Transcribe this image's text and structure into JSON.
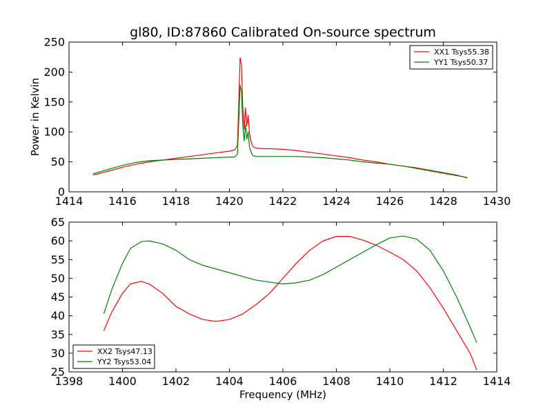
{
  "figure": {
    "title": "gl80, ID:87860 Calibrated On-source spectrum",
    "xlabel": "Frequency (MHz)"
  },
  "chart_data": [
    {
      "type": "line",
      "title": "gl80, ID:87860 Calibrated On-source spectrum",
      "xlabel": "",
      "ylabel": "Power in Kelvin",
      "xlim": [
        1414,
        1430
      ],
      "ylim": [
        0,
        250
      ],
      "xticks": [
        1414,
        1416,
        1418,
        1420,
        1422,
        1424,
        1426,
        1428,
        1430
      ],
      "yticks": [
        0,
        50,
        100,
        150,
        200,
        250
      ],
      "legend_position": "top-right",
      "grid": false,
      "series": [
        {
          "name": "XX1 Tsys55.38",
          "color": "#ff0000",
          "x": [
            1414.9,
            1415.5,
            1416.0,
            1416.5,
            1417.0,
            1417.5,
            1418.0,
            1418.5,
            1419.0,
            1419.5,
            1420.0,
            1420.2,
            1420.3,
            1420.35,
            1420.4,
            1420.45,
            1420.5,
            1420.55,
            1420.6,
            1420.65,
            1420.7,
            1420.75,
            1420.8,
            1420.85,
            1420.9,
            1421.0,
            1421.2,
            1421.5,
            1422.0,
            1422.5,
            1423.0,
            1423.5,
            1424.0,
            1424.5,
            1425.0,
            1425.5,
            1426.0,
            1426.5,
            1427.0,
            1427.5,
            1428.0,
            1428.5,
            1428.9
          ],
          "y": [
            28,
            35,
            41,
            46,
            50,
            53,
            56,
            59,
            62,
            65,
            68,
            70,
            78,
            150,
            224,
            212,
            140,
            105,
            140,
            110,
            128,
            98,
            85,
            78,
            75,
            73,
            72,
            72,
            71,
            69,
            66,
            63,
            60,
            57,
            53,
            50,
            46,
            43,
            39,
            35,
            31,
            27,
            24
          ]
        },
        {
          "name": "YY1 Tsys50.37",
          "color": "#008000",
          "x": [
            1414.9,
            1415.5,
            1416.0,
            1416.5,
            1417.0,
            1417.5,
            1418.0,
            1418.5,
            1419.0,
            1419.5,
            1420.0,
            1420.2,
            1420.3,
            1420.35,
            1420.4,
            1420.45,
            1420.5,
            1420.55,
            1420.6,
            1420.65,
            1420.7,
            1420.75,
            1420.8,
            1420.85,
            1420.9,
            1421.0,
            1421.2,
            1421.5,
            1422.0,
            1422.5,
            1423.0,
            1423.5,
            1424.0,
            1424.5,
            1425.0,
            1425.5,
            1426.0,
            1426.5,
            1427.0,
            1427.5,
            1428.0,
            1428.5,
            1428.9
          ],
          "y": [
            30,
            38,
            44,
            49,
            52,
            53,
            54,
            55,
            56,
            57,
            58,
            58,
            63,
            120,
            178,
            168,
            110,
            85,
            112,
            88,
            100,
            75,
            68,
            62,
            60,
            59,
            59,
            59,
            59,
            59,
            58,
            57,
            55,
            53,
            50,
            48,
            46,
            43,
            40,
            36,
            32,
            28,
            23
          ]
        }
      ]
    },
    {
      "type": "line",
      "title": "",
      "xlabel": "Frequency (MHz)",
      "ylabel": "",
      "xlim": [
        1398,
        1414
      ],
      "ylim": [
        25,
        65
      ],
      "xticks": [
        1398,
        1400,
        1402,
        1404,
        1406,
        1408,
        1410,
        1412,
        1414
      ],
      "yticks": [
        25,
        30,
        35,
        40,
        45,
        50,
        55,
        60,
        65
      ],
      "legend_position": "bottom-left",
      "grid": false,
      "series": [
        {
          "name": "XX2 Tsys47.13",
          "color": "#ff0000",
          "x": [
            1399.3,
            1399.6,
            1400.0,
            1400.3,
            1400.7,
            1401.0,
            1401.5,
            1402.0,
            1402.5,
            1403.0,
            1403.5,
            1404.0,
            1404.5,
            1405.0,
            1405.5,
            1406.0,
            1406.5,
            1407.0,
            1407.5,
            1408.0,
            1408.5,
            1409.0,
            1409.5,
            1410.0,
            1410.5,
            1411.0,
            1411.5,
            1412.0,
            1412.5,
            1413.0,
            1413.25
          ],
          "y": [
            36,
            41,
            46,
            48.5,
            49.2,
            48.5,
            46,
            42.5,
            40.5,
            39,
            38.5,
            39,
            40.5,
            43,
            46,
            50,
            54,
            57.5,
            60,
            61.2,
            61.2,
            60.2,
            58.8,
            57,
            55,
            52,
            47.5,
            42,
            36,
            30,
            25.5
          ]
        },
        {
          "name": "YY2 Tsys53.04",
          "color": "#008000",
          "x": [
            1399.3,
            1399.6,
            1400.0,
            1400.3,
            1400.7,
            1401.0,
            1401.5,
            1402.0,
            1402.5,
            1403.0,
            1403.5,
            1404.0,
            1404.5,
            1405.0,
            1405.5,
            1406.0,
            1406.5,
            1407.0,
            1407.5,
            1408.0,
            1408.5,
            1409.0,
            1409.5,
            1410.0,
            1410.5,
            1411.0,
            1411.5,
            1412.0,
            1412.5,
            1413.0,
            1413.25
          ],
          "y": [
            40.5,
            47,
            54,
            58,
            59.8,
            60,
            59.2,
            57.5,
            55,
            53.5,
            52.5,
            51.5,
            50.5,
            49.5,
            49,
            48.5,
            48.8,
            49.5,
            51,
            53,
            55,
            57,
            59,
            60.8,
            61.3,
            60.5,
            57.5,
            52,
            45,
            37,
            32.8
          ]
        }
      ]
    }
  ]
}
